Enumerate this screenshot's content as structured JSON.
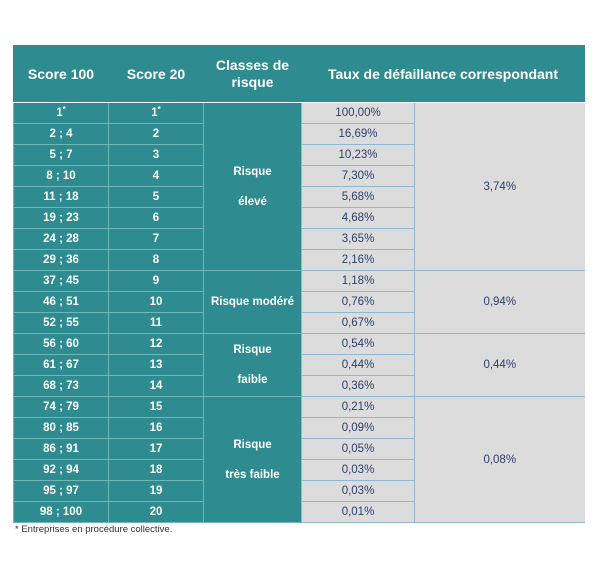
{
  "headers": [
    "Score 100",
    "Score 20",
    "Classes de risque",
    "Taux de défaillance correspondant"
  ],
  "rows": [
    {
      "s100": "1",
      "s20": "1",
      "s100_sup": "*",
      "s20_sup": "*",
      "rate": "100,00%"
    },
    {
      "s100": "2 ; 4",
      "s20": "2",
      "rate": "16,69%"
    },
    {
      "s100": "5 ; 7",
      "s20": "3",
      "rate": "10,23%"
    },
    {
      "s100": "8 ; 10",
      "s20": "4",
      "rate": "7,30%"
    },
    {
      "s100": "11 ; 18",
      "s20": "5",
      "rate": "5,68%"
    },
    {
      "s100": "19 ; 23",
      "s20": "6",
      "rate": "4,68%"
    },
    {
      "s100": "24 ; 28",
      "s20": "7",
      "rate": "3,65%"
    },
    {
      "s100": "29 ; 36",
      "s20": "8",
      "rate": "2,16%"
    },
    {
      "s100": "37 ; 45",
      "s20": "9",
      "rate": "1,18%"
    },
    {
      "s100": "46 ; 51",
      "s20": "10",
      "rate": "0,76%"
    },
    {
      "s100": "52 ; 55",
      "s20": "11",
      "rate": "0,67%"
    },
    {
      "s100": "56 ; 60",
      "s20": "12",
      "rate": "0,54%"
    },
    {
      "s100": "61 ; 67",
      "s20": "13",
      "rate": "0,44%"
    },
    {
      "s100": "68 ; 73",
      "s20": "14",
      "rate": "0,36%"
    },
    {
      "s100": "74 ; 79",
      "s20": "15",
      "rate": "0,21%"
    },
    {
      "s100": "80 ; 85",
      "s20": "16",
      "rate": "0,09%"
    },
    {
      "s100": "86 ; 91",
      "s20": "17",
      "rate": "0,05%"
    },
    {
      "s100": "92 ; 94",
      "s20": "18",
      "rate": "0,03%"
    },
    {
      "s100": "95 ; 97",
      "s20": "19",
      "rate": "0,03%"
    },
    {
      "s100": "98 ; 100",
      "s20": "20",
      "rate": "0,01%"
    }
  ],
  "classes": [
    {
      "lines": [
        "Risque",
        "élevé"
      ],
      "corr": "3,74%",
      "span": 8
    },
    {
      "lines": [
        "Risque modéré"
      ],
      "corr": "0,94%",
      "span": 3
    },
    {
      "lines": [
        "Risque",
        "faible"
      ],
      "corr": "0,44%",
      "span": 3
    },
    {
      "lines": [
        "Risque",
        "très faible"
      ],
      "corr": "0,08%",
      "span": 6
    }
  ],
  "footnote": "* Entreprises en procédure collective.",
  "colors": {
    "header_teal": "#2e8b8f",
    "cell_grey": "#dcdcdc",
    "value_text": "#2b3f6a"
  }
}
